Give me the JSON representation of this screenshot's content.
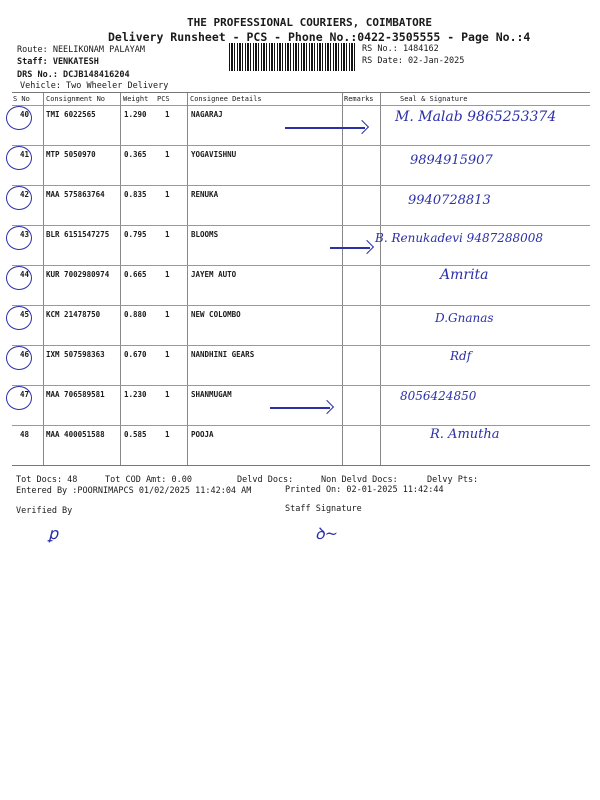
{
  "header": {
    "company": "THE PROFESSIONAL COURIERS, COIMBATORE",
    "subtitle": "Delivery Runsheet - PCS - Phone No.:0422-3505555 - Page No.:4",
    "route": "Route: NEELIKONAM PALAYAM",
    "staff": "Staff: VENKATESH",
    "drs_no": "DRS No.: DCJB148416204",
    "vehicle": "Vehicle: Two Wheeler Delivery",
    "rs_no": "RS No.: 1484162",
    "rs_date": "RS Date: 02-Jan-2025"
  },
  "table": {
    "columns": [
      "S No",
      "Consignment No",
      "Weight",
      "PCS",
      "Consignee Details",
      "Remarks",
      "Seal & Signature"
    ],
    "rows": [
      {
        "sno": "40",
        "consignment": "TMI 6022565",
        "weight": "1.290",
        "pcs": "1",
        "consignee": "NAGARAJ",
        "signature": "M. Malab 9865253374"
      },
      {
        "sno": "41",
        "consignment": "MTP 5050970",
        "weight": "0.365",
        "pcs": "1",
        "consignee": "YOGAVISHNU",
        "signature": "9894915907"
      },
      {
        "sno": "42",
        "consignment": "MAA 575863764",
        "weight": "0.835",
        "pcs": "1",
        "consignee": "RENUKA",
        "signature": "9940728813"
      },
      {
        "sno": "43",
        "consignment": "BLR 6151547275",
        "weight": "0.795",
        "pcs": "1",
        "consignee": "BLOOMS",
        "signature": "B. Renukadevi 9487288008"
      },
      {
        "sno": "44",
        "consignment": "KUR 7002980974",
        "weight": "0.665",
        "pcs": "1",
        "consignee": "JAYEM AUTO",
        "signature": "Amrita"
      },
      {
        "sno": "45",
        "consignment": "KCM 21478750",
        "weight": "0.880",
        "pcs": "1",
        "consignee": "NEW COLOMBO",
        "signature": "D.Gnanas"
      },
      {
        "sno": "46",
        "consignment": "IXM 507598363",
        "weight": "0.670",
        "pcs": "1",
        "consignee": "NANDHINI GEARS",
        "signature": "Rdf"
      },
      {
        "sno": "47",
        "consignment": "MAA 706589581",
        "weight": "1.230",
        "pcs": "1",
        "consignee": "SHANMUGAM",
        "signature": "8056424850"
      },
      {
        "sno": "48",
        "consignment": "MAA 400051588",
        "weight": "0.585",
        "pcs": "1",
        "consignee": "POOJA",
        "signature": "R. Amutha"
      }
    ]
  },
  "footer": {
    "tot_docs": "Tot Docs:  48",
    "tot_cod": "Tot COD Amt:    0.00",
    "delvd_docs": "Delvd Docs:",
    "non_delvd_docs": "Non Delvd Docs:",
    "delvy_pts": "Delvy Pts:",
    "entered_by": "Entered By :POORNIMAPCS 01/02/2025 11:42:04 AM",
    "printed_on": "Printed On: 02-01-2025 11:42:44",
    "verified_by": "Verified By",
    "staff_signature": "Staff Signature"
  },
  "colors": {
    "ink": "#2b2fa8",
    "print": "#1a1a1a"
  }
}
